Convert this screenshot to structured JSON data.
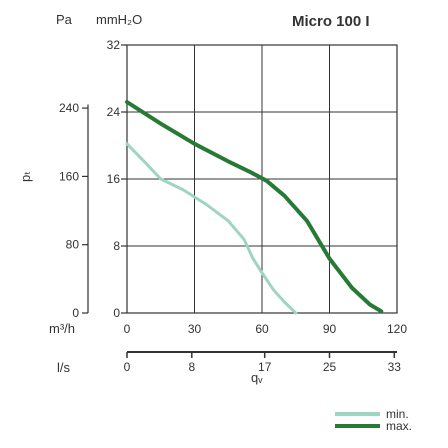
{
  "chart_data": {
    "type": "line",
    "title": "Micro 100  I",
    "units": {
      "pa": "Pa",
      "mmh2o": "mmH₂O",
      "m3h": "m³/h",
      "ls": "l/s",
      "pt": "pₜ",
      "qv": "qᵥ"
    },
    "x_m3h": {
      "range": [
        0,
        120
      ],
      "ticks": [
        "0",
        "30",
        "60",
        "90",
        "120"
      ]
    },
    "x_ls": {
      "ticks": [
        "0",
        "8",
        "17",
        "25",
        "33"
      ]
    },
    "y_mmh2o": {
      "range": [
        0,
        32
      ],
      "ticks": [
        "0",
        "8",
        "16",
        "24",
        "32"
      ]
    },
    "y_pa": {
      "ticks": [
        "0",
        "80",
        "160",
        "240"
      ]
    },
    "grid": true,
    "legend_position": "bottom-right",
    "series": [
      {
        "name": "min.",
        "color": "#9fd4c4",
        "x": [
          0,
          8,
          15,
          25,
          35,
          45,
          52,
          56,
          60,
          65,
          70,
          75
        ],
        "y": [
          20.2,
          18.0,
          16.0,
          14.7,
          13.0,
          11.0,
          8.8,
          6.5,
          4.8,
          2.8,
          1.3,
          0
        ]
      },
      {
        "name": "max.",
        "color": "#267a35",
        "x": [
          0,
          15,
          30,
          45,
          55,
          62,
          70,
          80,
          90,
          100,
          108,
          113
        ],
        "y": [
          25.2,
          22.6,
          20.2,
          18.1,
          16.8,
          15.8,
          14.0,
          11.0,
          6.5,
          3.0,
          1.0,
          0.2
        ]
      }
    ]
  }
}
